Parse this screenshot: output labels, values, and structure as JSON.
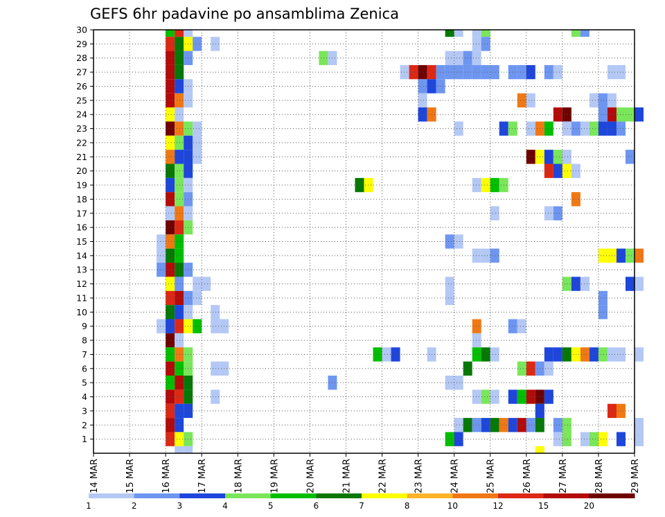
{
  "chart_data": {
    "type": "heatmap",
    "title": "GEFS 6hr padavine po ansamblima Zenica",
    "xlabel": "",
    "ylabel": "",
    "x_ticks": [
      "14 MAR",
      "15 MAR",
      "16 MAR",
      "17 MAR",
      "18 MAR",
      "19 MAR",
      "20 MAR",
      "21 MAR",
      "22 MAR",
      "23 MAR",
      "24 MAR",
      "25 MAR",
      "26 MAR",
      "27 MAR",
      "28 MAR",
      "29 MAR"
    ],
    "xlim": [
      0,
      60
    ],
    "y_ticks": [
      1,
      2,
      3,
      4,
      5,
      6,
      7,
      8,
      9,
      10,
      11,
      12,
      13,
      14,
      15,
      16,
      17,
      18,
      19,
      20,
      21,
      22,
      23,
      24,
      25,
      26,
      27,
      28,
      29,
      30
    ],
    "ylim": [
      0,
      30
    ],
    "grid": true,
    "legend_position": "bottom",
    "legend": {
      "labels": [
        "1",
        "2",
        "3",
        "4",
        "5",
        "6",
        "7",
        "8",
        "10",
        "12",
        "15",
        "20"
      ],
      "colors": [
        "#b4c8f5",
        "#6e96f0",
        "#1e46dc",
        "#7ae65a",
        "#00be00",
        "#057805",
        "#ffff00",
        "#ffb428",
        "#f07814",
        "#dc2814",
        "#b40a0a",
        "#6e0000"
      ]
    },
    "cells_legend": "each cell: [time_step_index (6h steps from 14 MAR 00Z), ensemble_member, color_class 0-11]",
    "cells": [
      [
        8,
        30,
        4
      ],
      [
        9,
        30,
        9
      ],
      [
        10,
        30,
        0
      ],
      [
        8,
        29,
        9
      ],
      [
        9,
        29,
        5
      ],
      [
        10,
        29,
        6
      ],
      [
        11,
        29,
        1
      ],
      [
        13,
        29,
        0
      ],
      [
        8,
        28,
        10
      ],
      [
        9,
        28,
        5
      ],
      [
        10,
        28,
        1
      ],
      [
        8,
        27,
        10
      ],
      [
        9,
        27,
        5
      ],
      [
        8,
        26,
        10
      ],
      [
        9,
        26,
        2
      ],
      [
        10,
        26,
        0
      ],
      [
        8,
        25,
        10
      ],
      [
        9,
        25,
        8
      ],
      [
        10,
        25,
        0
      ],
      [
        8,
        24,
        6
      ],
      [
        9,
        24,
        0
      ],
      [
        8,
        23,
        11
      ],
      [
        9,
        23,
        8
      ],
      [
        10,
        23,
        3
      ],
      [
        11,
        23,
        0
      ],
      [
        8,
        22,
        6
      ],
      [
        9,
        22,
        3
      ],
      [
        10,
        22,
        2
      ],
      [
        11,
        22,
        0
      ],
      [
        8,
        21,
        8
      ],
      [
        9,
        21,
        2
      ],
      [
        10,
        21,
        2
      ],
      [
        11,
        21,
        0
      ],
      [
        8,
        20,
        5
      ],
      [
        9,
        20,
        3
      ],
      [
        10,
        20,
        2
      ],
      [
        8,
        19,
        2
      ],
      [
        9,
        19,
        3
      ],
      [
        10,
        19,
        0
      ],
      [
        8,
        18,
        10
      ],
      [
        9,
        18,
        3
      ],
      [
        10,
        18,
        1
      ],
      [
        8,
        17,
        0
      ],
      [
        9,
        17,
        8
      ],
      [
        10,
        17,
        0
      ],
      [
        8,
        16,
        11
      ],
      [
        9,
        16,
        9
      ],
      [
        10,
        16,
        3
      ],
      [
        7,
        15,
        0
      ],
      [
        8,
        15,
        8
      ],
      [
        9,
        15,
        4
      ],
      [
        7,
        14,
        0
      ],
      [
        8,
        14,
        5
      ],
      [
        9,
        14,
        4
      ],
      [
        7,
        13,
        1
      ],
      [
        8,
        13,
        10
      ],
      [
        9,
        13,
        5
      ],
      [
        10,
        13,
        1
      ],
      [
        8,
        12,
        6
      ],
      [
        9,
        12,
        1
      ],
      [
        11,
        12,
        0
      ],
      [
        12,
        12,
        0
      ],
      [
        8,
        11,
        9
      ],
      [
        9,
        11,
        10
      ],
      [
        10,
        11,
        1
      ],
      [
        11,
        11,
        0
      ],
      [
        8,
        10,
        5
      ],
      [
        9,
        10,
        2
      ],
      [
        10,
        10,
        0
      ],
      [
        13,
        10,
        0
      ],
      [
        7,
        9,
        0
      ],
      [
        8,
        9,
        2
      ],
      [
        9,
        9,
        9
      ],
      [
        10,
        9,
        6
      ],
      [
        11,
        9,
        4
      ],
      [
        13,
        9,
        0
      ],
      [
        14,
        9,
        0
      ],
      [
        8,
        8,
        11
      ],
      [
        9,
        8,
        0
      ],
      [
        8,
        7,
        4
      ],
      [
        9,
        7,
        8
      ],
      [
        10,
        7,
        3
      ],
      [
        8,
        6,
        10
      ],
      [
        9,
        6,
        4
      ],
      [
        10,
        6,
        3
      ],
      [
        13,
        6,
        0
      ],
      [
        14,
        6,
        0
      ],
      [
        8,
        5,
        4
      ],
      [
        9,
        5,
        10
      ],
      [
        10,
        5,
        5
      ],
      [
        8,
        4,
        10
      ],
      [
        9,
        4,
        9
      ],
      [
        10,
        4,
        5
      ],
      [
        13,
        4,
        0
      ],
      [
        8,
        3,
        9
      ],
      [
        9,
        3,
        2
      ],
      [
        10,
        3,
        2
      ],
      [
        8,
        2,
        10
      ],
      [
        9,
        2,
        2
      ],
      [
        8,
        1,
        9
      ],
      [
        9,
        1,
        6
      ],
      [
        10,
        1,
        3
      ],
      [
        9,
        0,
        0
      ],
      [
        10,
        0,
        0
      ],
      [
        39,
        30,
        5
      ],
      [
        40,
        30,
        0
      ],
      [
        42,
        30,
        0
      ],
      [
        43,
        30,
        3
      ],
      [
        53,
        30,
        3
      ],
      [
        54,
        30,
        1
      ],
      [
        42,
        29,
        0
      ],
      [
        43,
        29,
        1
      ],
      [
        65,
        29,
        9
      ],
      [
        25,
        28,
        3
      ],
      [
        26,
        28,
        0
      ],
      [
        39,
        28,
        0
      ],
      [
        40,
        28,
        0
      ],
      [
        41,
        28,
        1
      ],
      [
        42,
        28,
        0
      ],
      [
        34,
        27,
        0
      ],
      [
        35,
        27,
        9
      ],
      [
        36,
        27,
        11
      ],
      [
        37,
        27,
        9
      ],
      [
        38,
        27,
        1
      ],
      [
        39,
        27,
        1
      ],
      [
        40,
        27,
        1
      ],
      [
        41,
        27,
        1
      ],
      [
        42,
        27,
        1
      ],
      [
        43,
        27,
        1
      ],
      [
        44,
        27,
        1
      ],
      [
        46,
        27,
        1
      ],
      [
        47,
        27,
        1
      ],
      [
        48,
        27,
        2
      ],
      [
        50,
        27,
        1
      ],
      [
        51,
        27,
        0
      ],
      [
        57,
        27,
        0
      ],
      [
        58,
        27,
        0
      ],
      [
        36,
        26,
        1
      ],
      [
        37,
        26,
        2
      ],
      [
        38,
        26,
        1
      ],
      [
        36,
        25,
        0
      ],
      [
        47,
        25,
        8
      ],
      [
        48,
        25,
        0
      ],
      [
        55,
        25,
        0
      ],
      [
        56,
        25,
        1
      ],
      [
        57,
        25,
        0
      ],
      [
        36,
        24,
        2
      ],
      [
        37,
        24,
        8
      ],
      [
        51,
        24,
        10
      ],
      [
        52,
        24,
        11
      ],
      [
        56,
        24,
        1
      ],
      [
        57,
        24,
        10
      ],
      [
        58,
        24,
        3
      ],
      [
        59,
        24,
        3
      ],
      [
        60,
        24,
        2
      ],
      [
        40,
        23,
        0
      ],
      [
        45,
        23,
        2
      ],
      [
        46,
        23,
        3
      ],
      [
        48,
        23,
        0
      ],
      [
        49,
        23,
        8
      ],
      [
        50,
        23,
        4
      ],
      [
        52,
        23,
        0
      ],
      [
        53,
        23,
        1
      ],
      [
        54,
        23,
        0
      ],
      [
        55,
        23,
        3
      ],
      [
        56,
        23,
        2
      ],
      [
        57,
        23,
        2
      ],
      [
        58,
        23,
        1
      ],
      [
        48,
        21,
        11
      ],
      [
        49,
        21,
        6
      ],
      [
        50,
        21,
        2
      ],
      [
        51,
        21,
        3
      ],
      [
        52,
        21,
        0
      ],
      [
        59,
        21,
        1
      ],
      [
        50,
        20,
        9
      ],
      [
        51,
        20,
        2
      ],
      [
        52,
        20,
        6
      ],
      [
        53,
        20,
        0
      ],
      [
        29,
        19,
        5
      ],
      [
        30,
        19,
        6
      ],
      [
        42,
        19,
        0
      ],
      [
        43,
        19,
        6
      ],
      [
        44,
        19,
        4
      ],
      [
        45,
        19,
        3
      ],
      [
        53,
        18,
        8
      ],
      [
        44,
        17,
        0
      ],
      [
        50,
        17,
        0
      ],
      [
        51,
        17,
        1
      ],
      [
        39,
        15,
        1
      ],
      [
        40,
        15,
        0
      ],
      [
        42,
        14,
        0
      ],
      [
        43,
        14,
        0
      ],
      [
        44,
        14,
        1
      ],
      [
        56,
        14,
        6
      ],
      [
        57,
        14,
        6
      ],
      [
        58,
        14,
        2
      ],
      [
        59,
        14,
        3
      ],
      [
        60,
        14,
        8
      ],
      [
        39,
        12,
        0
      ],
      [
        52,
        12,
        3
      ],
      [
        53,
        12,
        2
      ],
      [
        54,
        12,
        0
      ],
      [
        59,
        12,
        2
      ],
      [
        60,
        12,
        0
      ],
      [
        39,
        11,
        0
      ],
      [
        56,
        11,
        1
      ],
      [
        56,
        10,
        1
      ],
      [
        42,
        9,
        8
      ],
      [
        46,
        9,
        1
      ],
      [
        47,
        9,
        0
      ],
      [
        42,
        8,
        0
      ],
      [
        31,
        7,
        4
      ],
      [
        32,
        7,
        0
      ],
      [
        33,
        7,
        2
      ],
      [
        37,
        7,
        0
      ],
      [
        42,
        7,
        4
      ],
      [
        43,
        7,
        5
      ],
      [
        44,
        7,
        0
      ],
      [
        50,
        7,
        2
      ],
      [
        51,
        7,
        2
      ],
      [
        52,
        7,
        5
      ],
      [
        53,
        7,
        6
      ],
      [
        54,
        7,
        8
      ],
      [
        55,
        7,
        2
      ],
      [
        56,
        7,
        3
      ],
      [
        57,
        7,
        0
      ],
      [
        58,
        7,
        0
      ],
      [
        60,
        7,
        0
      ],
      [
        41,
        6,
        5
      ],
      [
        47,
        6,
        3
      ],
      [
        48,
        6,
        9
      ],
      [
        49,
        6,
        1
      ],
      [
        50,
        6,
        0
      ],
      [
        26,
        5,
        1
      ],
      [
        39,
        5,
        0
      ],
      [
        40,
        5,
        0
      ],
      [
        42,
        4,
        0
      ],
      [
        43,
        4,
        3
      ],
      [
        44,
        4,
        0
      ],
      [
        46,
        4,
        2
      ],
      [
        47,
        4,
        4
      ],
      [
        48,
        4,
        10
      ],
      [
        49,
        4,
        11
      ],
      [
        50,
        4,
        2
      ],
      [
        49,
        3,
        0
      ],
      [
        49,
        3,
        2
      ],
      [
        57,
        3,
        9
      ],
      [
        58,
        3,
        8
      ],
      [
        40,
        2,
        0
      ],
      [
        41,
        2,
        5
      ],
      [
        42,
        2,
        1
      ],
      [
        43,
        2,
        2
      ],
      [
        44,
        2,
        5
      ],
      [
        45,
        2,
        8
      ],
      [
        46,
        2,
        2
      ],
      [
        47,
        2,
        10
      ],
      [
        48,
        2,
        1
      ],
      [
        49,
        2,
        5
      ],
      [
        51,
        2,
        1
      ],
      [
        52,
        2,
        3
      ],
      [
        60,
        2,
        0
      ],
      [
        39,
        1,
        4
      ],
      [
        40,
        1,
        2
      ],
      [
        51,
        1,
        0
      ],
      [
        52,
        1,
        3
      ],
      [
        54,
        1,
        0
      ],
      [
        55,
        1,
        3
      ],
      [
        56,
        1,
        6
      ],
      [
        58,
        1,
        2
      ],
      [
        60,
        1,
        0
      ],
      [
        49,
        0,
        6
      ]
    ]
  }
}
